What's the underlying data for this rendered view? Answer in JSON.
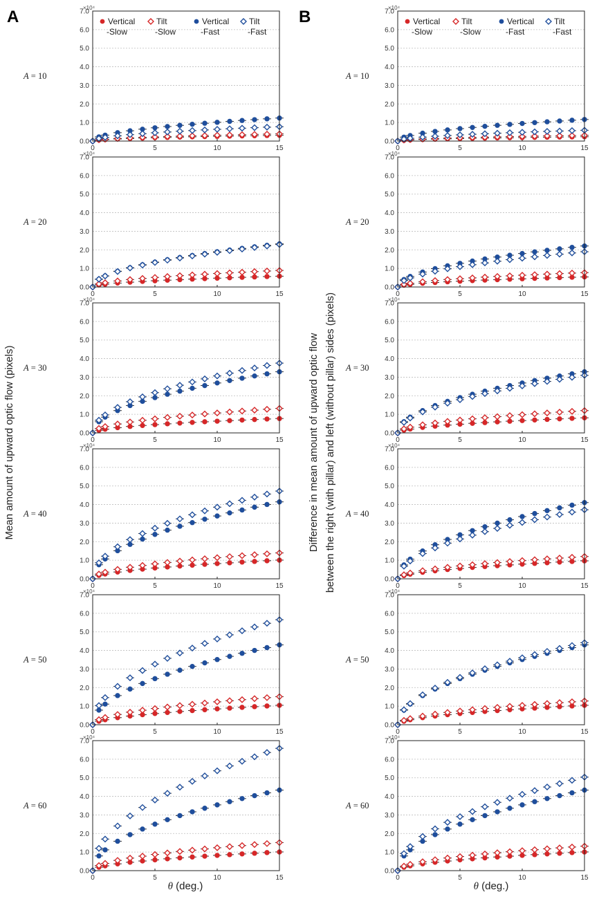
{
  "panels": [
    {
      "letter": "A",
      "ylabel": "Mean amount of upward optic flow (pixels)"
    },
    {
      "letter": "B",
      "ylabel_line1": "Difference in mean amount of upward optic flow",
      "ylabel_line2": "between the right (with pillar) and left (without pillar) sides (pixels)"
    }
  ],
  "xlabel_symbol": "θ",
  "xlabel_rest": " (deg.)",
  "a_symbol": "A",
  "multiplier_label": "×10⁴",
  "legend": [
    {
      "line1": "Vertical",
      "line2": "-Slow",
      "marker": "circle",
      "color": "#d62728"
    },
    {
      "line1": "Tilt",
      "line2": "-Slow",
      "marker": "diamond",
      "color": "#d62728"
    },
    {
      "line1": "Vertical",
      "line2": "-Fast",
      "marker": "circle",
      "color": "#1f4e9c"
    },
    {
      "line1": "Tilt",
      "line2": "-Fast",
      "marker": "diamond",
      "color": "#1f4e9c"
    }
  ],
  "chart_data": [
    {
      "panel": "A",
      "A": 10,
      "type": "scatter",
      "xlim": [
        0,
        15
      ],
      "ylim": [
        0,
        7.0
      ],
      "ymultiplier": "×10⁴",
      "xticks": [
        0,
        5,
        10,
        15
      ],
      "yticks": [
        "0.0",
        "1.0",
        "2.0",
        "3.0",
        "4.0",
        "5.0",
        "6.0",
        "7.0"
      ],
      "series": [
        {
          "name": "Vertical-Slow",
          "k": 0.08
        },
        {
          "name": "Tilt-Slow",
          "k": 0.1
        },
        {
          "name": "Vertical-Fast",
          "k": 0.32
        },
        {
          "name": "Tilt-Fast",
          "k": 0.2
        }
      ]
    },
    {
      "panel": "A",
      "A": 20,
      "type": "scatter",
      "xlim": [
        0,
        15
      ],
      "ylim": [
        0,
        7.0
      ],
      "ymultiplier": "×10⁴",
      "xticks": [
        0,
        5,
        10,
        15
      ],
      "yticks": [
        "0.0",
        "1.0",
        "2.0",
        "3.0",
        "4.0",
        "5.0",
        "6.0",
        "7.0"
      ],
      "series": [
        {
          "name": "Vertical-Slow",
          "k": 0.15
        },
        {
          "name": "Tilt-Slow",
          "k": 0.23
        },
        {
          "name": "Vertical-Fast",
          "k": 0.6
        },
        {
          "name": "Tilt-Fast",
          "k": 0.59
        }
      ]
    },
    {
      "panel": "A",
      "A": 30,
      "type": "scatter",
      "xlim": [
        0,
        15
      ],
      "ylim": [
        0,
        7.0
      ],
      "ymultiplier": "×10⁴",
      "xticks": [
        0,
        5,
        10,
        15
      ],
      "yticks": [
        "0.0",
        "1.0",
        "2.0",
        "3.0",
        "4.0",
        "5.0",
        "6.0",
        "7.0"
      ],
      "series": [
        {
          "name": "Vertical-Slow",
          "k": 0.2
        },
        {
          "name": "Tilt-Slow",
          "k": 0.34
        },
        {
          "name": "Vertical-Fast",
          "k": 0.85
        },
        {
          "name": "Tilt-Fast",
          "k": 0.97
        }
      ]
    },
    {
      "panel": "A",
      "A": 40,
      "type": "scatter",
      "xlim": [
        0,
        15
      ],
      "ylim": [
        0,
        7.0
      ],
      "ymultiplier": "×10⁴",
      "xticks": [
        0,
        5,
        10,
        15
      ],
      "yticks": [
        "0.0",
        "1.0",
        "2.0",
        "3.0",
        "4.0",
        "5.0",
        "6.0",
        "7.0"
      ],
      "series": [
        {
          "name": "Vertical-Slow",
          "k": 0.26
        },
        {
          "name": "Tilt-Slow",
          "k": 0.36
        },
        {
          "name": "Vertical-Fast",
          "k": 1.07
        },
        {
          "name": "Tilt-Fast",
          "k": 1.22
        }
      ]
    },
    {
      "panel": "A",
      "A": 50,
      "type": "scatter",
      "xlim": [
        0,
        15
      ],
      "ylim": [
        0,
        7.0
      ],
      "ymultiplier": "×10⁴",
      "xticks": [
        0,
        5,
        10,
        15
      ],
      "yticks": [
        "0.0",
        "1.0",
        "2.0",
        "3.0",
        "4.0",
        "5.0",
        "6.0",
        "7.0"
      ],
      "series": [
        {
          "name": "Vertical-Slow",
          "k": 0.27
        },
        {
          "name": "Tilt-Slow",
          "k": 0.39
        },
        {
          "name": "Vertical-Fast",
          "k": 1.11
        },
        {
          "name": "Tilt-Fast",
          "k": 1.46
        }
      ]
    },
    {
      "panel": "A",
      "A": 60,
      "type": "scatter",
      "xlim": [
        0,
        15
      ],
      "ylim": [
        0,
        7.0
      ],
      "ymultiplier": "×10⁴",
      "xticks": [
        0,
        5,
        10,
        15
      ],
      "yticks": [
        "0.0",
        "1.0",
        "2.0",
        "3.0",
        "4.0",
        "5.0",
        "6.0",
        "7.0"
      ],
      "series": [
        {
          "name": "Vertical-Slow",
          "k": 0.26
        },
        {
          "name": "Tilt-Slow",
          "k": 0.39
        },
        {
          "name": "Vertical-Fast",
          "k": 1.12
        },
        {
          "name": "Tilt-Fast",
          "k": 1.7
        }
      ]
    },
    {
      "panel": "B",
      "A": 10,
      "type": "scatter",
      "xlim": [
        0,
        15
      ],
      "ylim": [
        0,
        7.0
      ],
      "ymultiplier": "×10⁴",
      "xticks": [
        0,
        5,
        10,
        15
      ],
      "yticks": [
        "0.0",
        "1.0",
        "2.0",
        "3.0",
        "4.0",
        "5.0",
        "6.0",
        "7.0"
      ],
      "series": [
        {
          "name": "Vertical-Slow",
          "k": 0.06
        },
        {
          "name": "Tilt-Slow",
          "k": 0.08
        },
        {
          "name": "Vertical-Fast",
          "k": 0.3
        },
        {
          "name": "Tilt-Fast",
          "k": 0.15
        }
      ]
    },
    {
      "panel": "B",
      "A": 20,
      "type": "scatter",
      "xlim": [
        0,
        15
      ],
      "ylim": [
        0,
        7.0
      ],
      "ymultiplier": "×10⁴",
      "xticks": [
        0,
        5,
        10,
        15
      ],
      "yticks": [
        "0.0",
        "1.0",
        "2.0",
        "3.0",
        "4.0",
        "5.0",
        "6.0",
        "7.0"
      ],
      "series": [
        {
          "name": "Vertical-Slow",
          "k": 0.14
        },
        {
          "name": "Tilt-Slow",
          "k": 0.2
        },
        {
          "name": "Vertical-Fast",
          "k": 0.57
        },
        {
          "name": "Tilt-Fast",
          "k": 0.49
        }
      ]
    },
    {
      "panel": "B",
      "A": 30,
      "type": "scatter",
      "xlim": [
        0,
        15
      ],
      "ylim": [
        0,
        7.0
      ],
      "ymultiplier": "×10⁴",
      "xticks": [
        0,
        5,
        10,
        15
      ],
      "yticks": [
        "0.0",
        "1.0",
        "2.0",
        "3.0",
        "4.0",
        "5.0",
        "6.0",
        "7.0"
      ],
      "series": [
        {
          "name": "Vertical-Slow",
          "k": 0.21
        },
        {
          "name": "Tilt-Slow",
          "k": 0.31
        },
        {
          "name": "Vertical-Fast",
          "k": 0.85
        },
        {
          "name": "Tilt-Fast",
          "k": 0.8
        }
      ]
    },
    {
      "panel": "B",
      "A": 40,
      "type": "scatter",
      "xlim": [
        0,
        15
      ],
      "ylim": [
        0,
        7.0
      ],
      "ymultiplier": "×10⁴",
      "xticks": [
        0,
        5,
        10,
        15
      ],
      "yticks": [
        "0.0",
        "1.0",
        "2.0",
        "3.0",
        "4.0",
        "5.0",
        "6.0",
        "7.0"
      ],
      "series": [
        {
          "name": "Vertical-Slow",
          "k": 0.25
        },
        {
          "name": "Tilt-Slow",
          "k": 0.31
        },
        {
          "name": "Vertical-Fast",
          "k": 1.06
        },
        {
          "name": "Tilt-Fast",
          "k": 0.96
        }
      ]
    },
    {
      "panel": "B",
      "A": 50,
      "type": "scatter",
      "xlim": [
        0,
        15
      ],
      "ylim": [
        0,
        7.0
      ],
      "ymultiplier": "×10⁴",
      "xticks": [
        0,
        5,
        10,
        15
      ],
      "yticks": [
        "0.0",
        "1.0",
        "2.0",
        "3.0",
        "4.0",
        "5.0",
        "6.0",
        "7.0"
      ],
      "series": [
        {
          "name": "Vertical-Slow",
          "k": 0.27
        },
        {
          "name": "Tilt-Slow",
          "k": 0.33
        },
        {
          "name": "Vertical-Fast",
          "k": 1.11
        },
        {
          "name": "Tilt-Fast",
          "k": 1.14
        }
      ]
    },
    {
      "panel": "B",
      "A": 60,
      "type": "scatter",
      "xlim": [
        0,
        15
      ],
      "ylim": [
        0,
        7.0
      ],
      "ymultiplier": "×10⁴",
      "xticks": [
        0,
        5,
        10,
        15
      ],
      "yticks": [
        "0.0",
        "1.0",
        "2.0",
        "3.0",
        "4.0",
        "5.0",
        "6.0",
        "7.0"
      ],
      "series": [
        {
          "name": "Vertical-Slow",
          "k": 0.26
        },
        {
          "name": "Tilt-Slow",
          "k": 0.34
        },
        {
          "name": "Vertical-Fast",
          "k": 1.12
        },
        {
          "name": "Tilt-Fast",
          "k": 1.3
        }
      ]
    }
  ],
  "series_note": "Each series is sampled at θ = 0.5, 1, 2, …, 15 with value y = k·√θ (×10⁴); θ = 0 gives 0."
}
